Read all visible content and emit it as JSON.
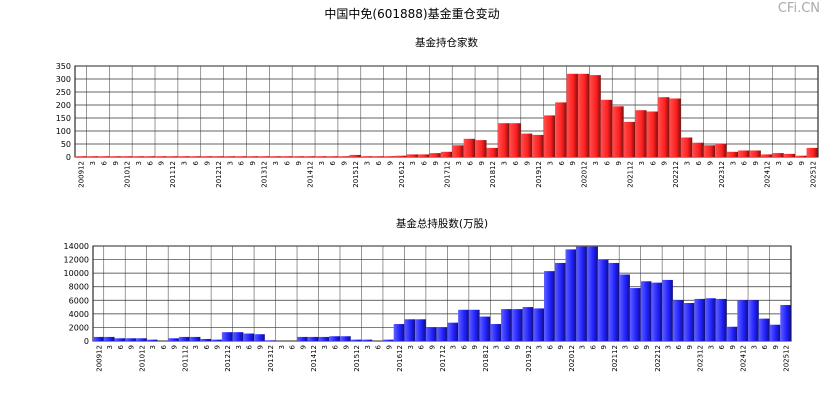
{
  "title": "中国中免(601888)基金重仓变动",
  "watermark": "CFi.CN",
  "chart_data": [
    {
      "type": "bar",
      "title": "基金持仓家数",
      "color": "#ff2020",
      "categories": [
        "200912",
        "3",
        "6",
        "9",
        "201012",
        "3",
        "6",
        "9",
        "201112",
        "3",
        "6",
        "9",
        "201212",
        "3",
        "6",
        "9",
        "201312",
        "3",
        "6",
        "9",
        "201412",
        "3",
        "6",
        "9",
        "201512",
        "3",
        "6",
        "9",
        "201612",
        "3",
        "6",
        "9",
        "201712",
        "3",
        "6",
        "9",
        "201812",
        "3",
        "6",
        "9",
        "201912",
        "3",
        "6",
        "9",
        "202012",
        "3",
        "6",
        "9",
        "202112",
        "3",
        "6",
        "9",
        "202212",
        "3",
        "6",
        "9",
        "202312",
        "3",
        "6",
        "9",
        "202412",
        "3",
        "6",
        "9",
        "202512"
      ],
      "values": [
        3,
        3,
        3,
        3,
        3,
        3,
        3,
        3,
        3,
        3,
        3,
        3,
        3,
        3,
        3,
        3,
        3,
        3,
        3,
        3,
        3,
        3,
        3,
        3,
        8,
        3,
        3,
        3,
        5,
        10,
        10,
        15,
        20,
        45,
        70,
        65,
        35,
        130,
        130,
        90,
        85,
        160,
        210,
        320,
        320,
        315,
        220,
        195,
        135,
        180,
        175,
        230,
        225,
        75,
        55,
        45,
        50,
        20,
        25,
        25,
        10,
        15,
        12,
        5,
        35
      ],
      "ylim": [
        0,
        350
      ],
      "yticks": [
        0,
        50,
        100,
        150,
        200,
        250,
        300,
        350
      ],
      "grid": true
    },
    {
      "type": "bar",
      "title": "基金总持股数(万股)",
      "color": "#2020ff",
      "categories": [
        "200912",
        "3",
        "6",
        "9",
        "201012",
        "3",
        "6",
        "9",
        "201112",
        "3",
        "6",
        "9",
        "201212",
        "3",
        "6",
        "9",
        "201312",
        "3",
        "6",
        "9",
        "201412",
        "3",
        "6",
        "9",
        "201512",
        "3",
        "6",
        "9",
        "201612",
        "3",
        "6",
        "9",
        "201712",
        "3",
        "6",
        "9",
        "201812",
        "3",
        "6",
        "9",
        "201912",
        "3",
        "6",
        "9",
        "202012",
        "3",
        "6",
        "9",
        "202112",
        "3",
        "6",
        "9",
        "202212",
        "3",
        "6",
        "9",
        "202312",
        "3",
        "6",
        "9",
        "202412",
        "3",
        "6",
        "9",
        "202512"
      ],
      "values": [
        600,
        600,
        400,
        400,
        400,
        200,
        0,
        400,
        600,
        600,
        300,
        200,
        1300,
        1300,
        1100,
        1000,
        100,
        0,
        0,
        600,
        600,
        600,
        700,
        700,
        200,
        200,
        0,
        200,
        2500,
        3200,
        3200,
        2000,
        2000,
        2700,
        4600,
        4600,
        3600,
        2500,
        4700,
        4700,
        5000,
        4800,
        10300,
        11500,
        13500,
        13900,
        13900,
        12000,
        11500,
        9800,
        7800,
        8800,
        8600,
        9000,
        6000,
        5600,
        6200,
        6300,
        6200,
        2100,
        6000,
        6000,
        3300,
        2400,
        5300
      ],
      "ylim": [
        0,
        14000
      ],
      "yticks": [
        0,
        2000,
        4000,
        6000,
        8000,
        10000,
        12000,
        14000
      ],
      "grid": true
    }
  ]
}
